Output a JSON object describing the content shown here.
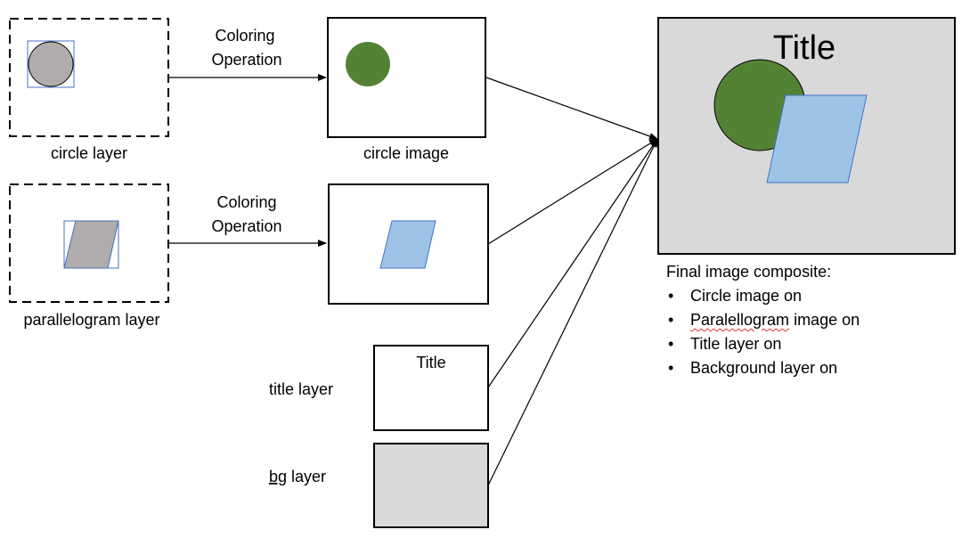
{
  "colors": {
    "gray_shape": "#b0acac",
    "green": "#548235",
    "light_blue": "#9dc3e6",
    "panel_gray": "#d9d9d9",
    "outline_blue": "#4472c4"
  },
  "layers": {
    "circle_layer_label": "circle layer",
    "parallelogram_layer_label": "parallelogram layer",
    "circle_image_label": "circle image",
    "title_layer_label": "title layer",
    "title_layer_text": "Title",
    "bg_layer_label_part1": "bg",
    "bg_layer_label_part2": " layer"
  },
  "operations": {
    "top_line1": "Coloring",
    "top_line2": "Operation",
    "bottom_line1": "Coloring",
    "bottom_line2": "Operation"
  },
  "composite": {
    "title": "Title",
    "heading": "Final image composite:",
    "item1": "Circle image on",
    "item2_a": "Paralellogram",
    "item2_b": " image on",
    "item3": "Title layer on",
    "item4": "Background layer on"
  }
}
